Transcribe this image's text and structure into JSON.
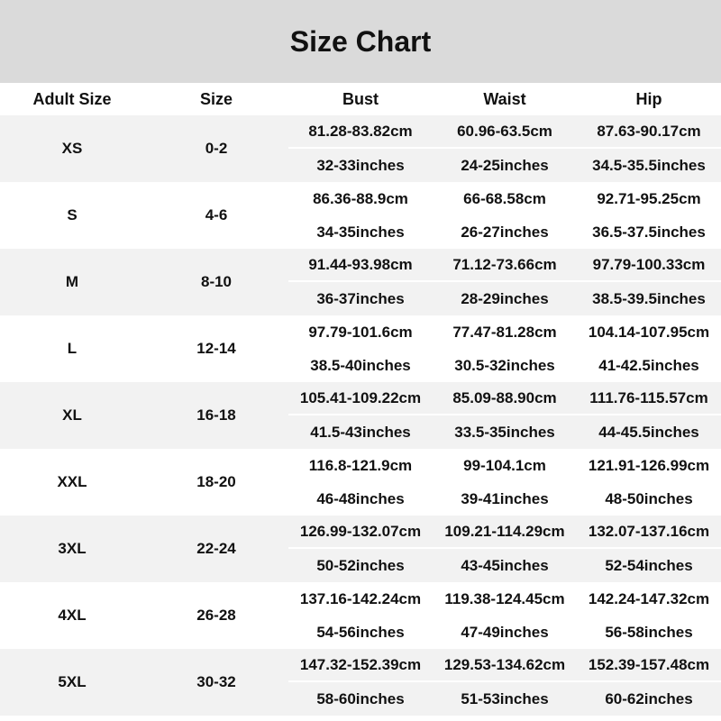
{
  "title": "Size Chart",
  "headers": [
    "Adult Size",
    "Size",
    "Bust",
    "Waist",
    "Hip"
  ],
  "rows": [
    {
      "adult": "XS",
      "size": "0-2",
      "cm": [
        "81.28-83.82cm",
        "60.96-63.5cm",
        "87.63-90.17cm"
      ],
      "in": [
        "32-33inches",
        "24-25inches",
        "34.5-35.5inches"
      ]
    },
    {
      "adult": "S",
      "size": "4-6",
      "cm": [
        "86.36-88.9cm",
        "66-68.58cm",
        "92.71-95.25cm"
      ],
      "in": [
        "34-35inches",
        "26-27inches",
        "36.5-37.5inches"
      ]
    },
    {
      "adult": "M",
      "size": "8-10",
      "cm": [
        "91.44-93.98cm",
        "71.12-73.66cm",
        "97.79-100.33cm"
      ],
      "in": [
        "36-37inches",
        "28-29inches",
        "38.5-39.5inches"
      ]
    },
    {
      "adult": "L",
      "size": "12-14",
      "cm": [
        "97.79-101.6cm",
        "77.47-81.28cm",
        "104.14-107.95cm"
      ],
      "in": [
        "38.5-40inches",
        "30.5-32inches",
        "41-42.5inches"
      ]
    },
    {
      "adult": "XL",
      "size": "16-18",
      "cm": [
        "105.41-109.22cm",
        "85.09-88.90cm",
        "111.76-115.57cm"
      ],
      "in": [
        "41.5-43inches",
        "33.5-35inches",
        "44-45.5inches"
      ]
    },
    {
      "adult": "XXL",
      "size": "18-20",
      "cm": [
        "116.8-121.9cm",
        "99-104.1cm",
        "121.91-126.99cm"
      ],
      "in": [
        "46-48inches",
        "39-41inches",
        "48-50inches"
      ]
    },
    {
      "adult": "3XL",
      "size": "22-24",
      "cm": [
        "126.99-132.07cm",
        "109.21-114.29cm",
        "132.07-137.16cm"
      ],
      "in": [
        "50-52inches",
        "43-45inches",
        "52-54inches"
      ]
    },
    {
      "adult": "4XL",
      "size": "26-28",
      "cm": [
        "137.16-142.24cm",
        "119.38-124.45cm",
        "142.24-147.32cm"
      ],
      "in": [
        "54-56inches",
        "47-49inches",
        "56-58inches"
      ]
    },
    {
      "adult": "5XL",
      "size": "30-32",
      "cm": [
        "147.32-152.39cm",
        "129.53-134.62cm",
        "152.39-157.48cm"
      ],
      "in": [
        "58-60inches",
        "51-53inches",
        "60-62inches"
      ]
    }
  ],
  "colors": {
    "title_bg": "#dadada",
    "alt_row_bg": "#f2f2f2",
    "text": "#111111"
  }
}
